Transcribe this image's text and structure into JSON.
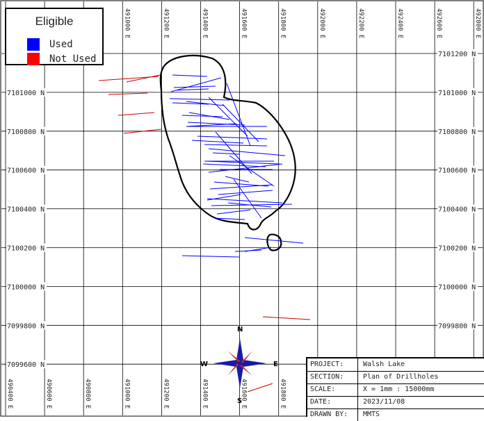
{
  "legend": {
    "title": "Eligible",
    "items": [
      {
        "label": "Used",
        "color": "#0000ff"
      },
      {
        "label": "Not Used",
        "color": "#ff0000"
      }
    ]
  },
  "grid": {
    "easting_labels": [
      "490400 E",
      "490600 E",
      "490800 E",
      "491000 E",
      "491200 E",
      "491400 E",
      "491600 E",
      "491800 E",
      "492000 E",
      "492200 E",
      "492400 E",
      "492600 E",
      "492800 E"
    ],
    "northing_labels": [
      "7101200 N",
      "7101000 N",
      "7100800 N",
      "7100600 N",
      "7100400 N",
      "7100200 N",
      "7100000 N",
      "7099800 N",
      "7099600 N"
    ]
  },
  "compass": {
    "n": "N",
    "s": "S",
    "e": "E",
    "w": "W"
  },
  "title_block": [
    {
      "key": "PROJECT:",
      "value": "Walsh Lake"
    },
    {
      "key": "SECTION:",
      "value": "Plan of Drillholes"
    },
    {
      "key": "SCALE:",
      "value": "X = 1mm : 15000mm"
    },
    {
      "key": "DATE:",
      "value": "2023/11/08"
    },
    {
      "key": "DRAWN BY:",
      "value": "MMTS"
    }
  ],
  "colors": {
    "used": "#0000ff",
    "not_used": "#cc0000",
    "grid": "#000000",
    "lake_outline": "#000000"
  }
}
